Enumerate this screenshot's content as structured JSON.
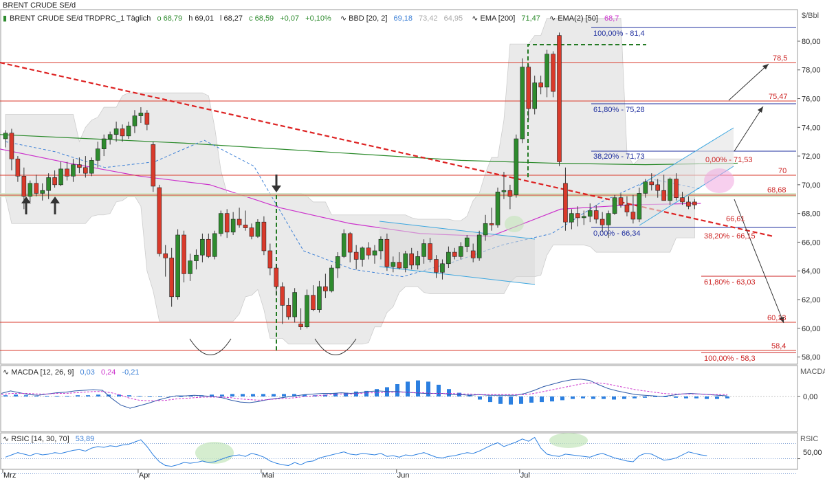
{
  "header": {
    "symbol": "BRENT CRUDE SE/d",
    "line": "BRENT CRUDE SE/d TRDPRC_1 Täglich",
    "open": "o 68,79",
    "high": "h 69,01",
    "low": "l 68,27",
    "close": "c 68,59",
    "change": "+0,07",
    "change_pct": "+0,10%",
    "bbd_label": "BBD [20, 2]",
    "bbd_v1": "69,18",
    "bbd_v2": "73,42",
    "bbd_v3": "64,95",
    "ema_label": "EMA [200]",
    "ema_value": "71,47",
    "ema2_label": "EMA(2) [50]",
    "ema2_value": "68,7"
  },
  "colors": {
    "up": "#2e8b2e",
    "down": "#d93a2b",
    "band_fill": "#e4e4e4",
    "ema200": "#2b8a2b",
    "ema50": "#cc33cc",
    "midband": "#3b7fd6",
    "trend": "#dd2222",
    "fib_red": "#cc2222",
    "fib_blue": "#1f2f9f",
    "macd_hist": "#2b7fe0",
    "rsi_line": "#2b7fe0"
  },
  "chart_data": {
    "type": "candlestick",
    "unit_label": "$/Bbl",
    "y_ticks": [
      "80,00",
      "78,00",
      "76,00",
      "74,00",
      "72,00",
      "70,00",
      "68,00",
      "66,00",
      "64,00",
      "62,00",
      "60,00",
      "58,00"
    ],
    "ylim": [
      57.5,
      82.2
    ],
    "x_labels": [
      {
        "label": "Mrz",
        "index": 0
      },
      {
        "label": "Apr",
        "index": 22
      },
      {
        "label": "Mai",
        "index": 42
      },
      {
        "label": "Jun",
        "index": 64
      },
      {
        "label": "Jul",
        "index": 84
      }
    ],
    "candles": [
      [
        73.2,
        73.8,
        72.6,
        73.6
      ],
      [
        73.6,
        73.9,
        71.0,
        71.8
      ],
      [
        71.8,
        72.0,
        70.2,
        70.6
      ],
      [
        70.6,
        71.2,
        68.3,
        69.2
      ],
      [
        69.2,
        70.3,
        68.8,
        70.1
      ],
      [
        70.1,
        70.7,
        69.2,
        69.4
      ],
      [
        69.4,
        70.1,
        68.9,
        69.6
      ],
      [
        69.6,
        70.8,
        69.0,
        70.5
      ],
      [
        70.5,
        71.0,
        69.8,
        70.0
      ],
      [
        70.0,
        71.6,
        69.9,
        71.1
      ],
      [
        71.1,
        71.6,
        70.3,
        70.6
      ],
      [
        70.6,
        71.8,
        70.2,
        71.4
      ],
      [
        71.4,
        71.9,
        70.8,
        71.2
      ],
      [
        71.2,
        72.0,
        70.5,
        70.8
      ],
      [
        70.8,
        71.9,
        70.6,
        71.7
      ],
      [
        71.7,
        73.0,
        71.2,
        72.5
      ],
      [
        72.5,
        73.5,
        72.0,
        73.2
      ],
      [
        73.2,
        73.7,
        72.8,
        73.5
      ],
      [
        73.5,
        74.4,
        73.0,
        73.9
      ],
      [
        73.9,
        74.2,
        73.0,
        73.4
      ],
      [
        73.4,
        74.4,
        73.2,
        74.1
      ],
      [
        74.1,
        75.2,
        73.6,
        74.8
      ],
      [
        74.8,
        75.4,
        74.3,
        75.0
      ],
      [
        75.0,
        75.2,
        73.8,
        74.2
      ],
      [
        72.8,
        73.0,
        69.5,
        69.9
      ],
      [
        69.8,
        70.0,
        65.0,
        65.2
      ],
      [
        65.2,
        65.8,
        63.6,
        64.9
      ],
      [
        64.9,
        65.6,
        61.5,
        62.2
      ],
      [
        62.2,
        66.9,
        62.0,
        66.5
      ],
      [
        66.5,
        66.8,
        63.2,
        63.8
      ],
      [
        63.8,
        65.2,
        63.3,
        64.7
      ],
      [
        64.7,
        65.5,
        64.1,
        65.1
      ],
      [
        65.1,
        66.6,
        64.6,
        66.2
      ],
      [
        66.2,
        66.6,
        64.9,
        65.0
      ],
      [
        65.0,
        66.8,
        64.8,
        66.6
      ],
      [
        66.6,
        68.2,
        66.4,
        68.0
      ],
      [
        68.0,
        68.3,
        66.3,
        66.7
      ],
      [
        66.7,
        68.1,
        66.5,
        67.6
      ],
      [
        67.6,
        68.4,
        67.0,
        67.2
      ],
      [
        67.2,
        68.2,
        66.8,
        67.0
      ],
      [
        67.0,
        67.3,
        66.2,
        66.4
      ],
      [
        66.4,
        67.6,
        66.3,
        67.4
      ],
      [
        67.4,
        67.8,
        65.1,
        65.4
      ],
      [
        65.4,
        65.9,
        63.7,
        64.2
      ],
      [
        64.2,
        64.5,
        62.3,
        62.9
      ],
      [
        62.9,
        63.2,
        60.3,
        61.6
      ],
      [
        61.6,
        62.1,
        60.6,
        60.8
      ],
      [
        60.8,
        62.8,
        60.4,
        62.5
      ],
      [
        60.3,
        61.4,
        59.9,
        60.1
      ],
      [
        60.1,
        62.7,
        60.0,
        62.3
      ],
      [
        62.3,
        63.0,
        61.2,
        61.3
      ],
      [
        61.3,
        63.3,
        61.1,
        62.9
      ],
      [
        62.9,
        63.8,
        62.1,
        62.6
      ],
      [
        62.6,
        64.4,
        62.5,
        64.2
      ],
      [
        64.2,
        65.3,
        63.5,
        65.0
      ],
      [
        65.0,
        66.9,
        64.9,
        66.6
      ],
      [
        66.6,
        66.7,
        64.6,
        65.3
      ],
      [
        65.3,
        65.8,
        64.1,
        64.8
      ],
      [
        64.8,
        65.7,
        64.3,
        65.6
      ],
      [
        65.6,
        66.0,
        64.8,
        65.1
      ],
      [
        65.1,
        65.8,
        64.5,
        65.4
      ],
      [
        65.4,
        66.4,
        64.8,
        66.2
      ],
      [
        66.2,
        66.6,
        64.0,
        64.3
      ],
      [
        64.3,
        65.0,
        63.9,
        64.6
      ],
      [
        64.6,
        65.3,
        64.1,
        64.2
      ],
      [
        64.2,
        65.4,
        63.9,
        65.2
      ],
      [
        65.2,
        65.6,
        64.1,
        64.4
      ],
      [
        64.4,
        65.4,
        64.1,
        65.0
      ],
      [
        65.0,
        66.2,
        64.5,
        65.9
      ],
      [
        65.9,
        66.3,
        64.6,
        64.8
      ],
      [
        64.8,
        65.1,
        63.5,
        63.9
      ],
      [
        63.9,
        64.8,
        63.4,
        64.5
      ],
      [
        64.5,
        65.7,
        64.2,
        65.3
      ],
      [
        65.3,
        65.6,
        64.8,
        65.0
      ],
      [
        65.0,
        66.0,
        64.8,
        65.7
      ],
      [
        65.7,
        66.5,
        65.3,
        66.3
      ],
      [
        65.4,
        65.9,
        64.6,
        64.9
      ],
      [
        64.9,
        66.8,
        64.7,
        66.5
      ],
      [
        66.5,
        67.9,
        66.1,
        67.3
      ],
      [
        67.3,
        68.4,
        66.8,
        67.2
      ],
      [
        67.2,
        69.8,
        67.0,
        69.5
      ],
      [
        69.5,
        70.9,
        69.0,
        69.6
      ],
      [
        69.6,
        70.0,
        68.3,
        69.2
      ],
      [
        69.3,
        73.5,
        69.1,
        73.2
      ],
      [
        73.2,
        78.8,
        72.9,
        78.2
      ],
      [
        78.2,
        78.4,
        74.5,
        75.3
      ],
      [
        75.3,
        77.6,
        74.9,
        77.1
      ],
      [
        77.1,
        77.6,
        76.3,
        76.8
      ],
      [
        76.8,
        79.4,
        76.1,
        79.1
      ],
      [
        79.1,
        79.3,
        76.1,
        76.5
      ],
      [
        80.4,
        80.6,
        71.3,
        71.6
      ],
      [
        70.1,
        71.2,
        66.8,
        67.4
      ],
      [
        67.4,
        68.3,
        66.9,
        68.0
      ],
      [
        68.0,
        68.5,
        67.1,
        67.7
      ],
      [
        67.7,
        68.2,
        67.2,
        67.8
      ],
      [
        67.8,
        68.7,
        67.4,
        68.2
      ],
      [
        68.2,
        68.6,
        67.3,
        67.6
      ],
      [
        67.6,
        68.1,
        66.7,
        67.2
      ],
      [
        67.2,
        68.2,
        66.3,
        68.0
      ],
      [
        68.0,
        69.3,
        67.9,
        69.1
      ],
      [
        69.1,
        69.4,
        68.4,
        68.6
      ],
      [
        68.6,
        69.2,
        67.8,
        68.1
      ],
      [
        68.1,
        69.3,
        67.3,
        67.6
      ],
      [
        67.6,
        69.8,
        67.4,
        69.4
      ],
      [
        69.4,
        70.4,
        69.1,
        70.2
      ],
      [
        70.2,
        70.8,
        69.6,
        70.0
      ],
      [
        70.0,
        70.4,
        69.1,
        69.6
      ],
      [
        69.6,
        70.7,
        68.9,
        68.9
      ],
      [
        68.9,
        70.5,
        68.6,
        70.4
      ],
      [
        70.4,
        70.8,
        68.9,
        69.1
      ],
      [
        69.1,
        69.5,
        68.6,
        68.8
      ],
      [
        68.8,
        69.2,
        68.3,
        68.5
      ],
      [
        68.8,
        69.0,
        68.3,
        68.6
      ]
    ],
    "ema200": [
      73.5,
      73.2,
      72.9,
      72.5,
      72.1,
      71.7,
      71.5,
      71.4,
      71.5
    ],
    "ema50": [
      72.5,
      71.5,
      70.6,
      70.0,
      68.4,
      67.3,
      66.6,
      66.4,
      68.3,
      68.6,
      68.7
    ],
    "mid_band": [
      73.0,
      72.3,
      71.2,
      71.6,
      73.1,
      71.3,
      65.4,
      64.1,
      63.6,
      64.6,
      65.8,
      66.6,
      68.8,
      70.4,
      69.7
    ],
    "annotations": {
      "right_levels": [
        "78,5",
        "75,47",
        "70",
        "68,68",
        "66,61",
        "60,13",
        "58,4"
      ],
      "fib_upper": [
        "100,00% - 81,4",
        "61,80% - 75,28",
        "38,20% - 71,73",
        "0,00% - 71,53",
        "0,00% - 66,34"
      ],
      "fib_lower": [
        "38,20% - 66,15",
        "61,80% - 63,03",
        "100,00% - 58,3"
      ]
    },
    "macd": {
      "label": "MACDA [12, 26, 9]",
      "v1": "0,03",
      "v2": "0,24",
      "v3": "-0,21",
      "axis_title": "MACDA",
      "zero_label": "0,00",
      "line": [
        0.5,
        0.9,
        0.6,
        0.3,
        0.2,
        0.4,
        0.6,
        0.7,
        0.9,
        1.0,
        1.1,
        1.0,
        -0.3,
        -1.4,
        -1.9,
        -1.5,
        -1.1,
        -0.6,
        -0.2,
        0.1,
        0.1,
        0.2,
        0.1,
        0.0,
        -0.2,
        -0.6,
        -0.9,
        -1.0,
        -0.8,
        -0.5,
        -0.3,
        -0.1,
        0.1,
        0.3,
        0.4,
        0.5,
        0.5,
        0.6,
        0.5,
        0.6,
        0.8,
        0.9,
        0.8,
        0.8,
        0.7,
        0.6,
        0.5,
        0.5,
        0.5,
        0.3,
        0.3,
        0.2,
        0.3,
        0.2,
        0.2,
        0.2,
        0.2,
        0.5,
        1.0,
        1.6,
        2.0,
        2.4,
        2.7,
        2.8,
        2.6,
        1.9,
        1.3,
        0.9,
        0.6,
        0.3,
        0.2,
        0.1,
        0.0,
        0.2,
        0.4,
        0.5,
        0.4,
        0.3,
        0.2,
        0.1
      ],
      "signal": [
        0.3,
        0.5,
        0.5,
        0.5,
        0.4,
        0.4,
        0.5,
        0.5,
        0.6,
        0.7,
        0.8,
        0.8,
        0.6,
        0.2,
        -0.3,
        -0.6,
        -0.7,
        -0.7,
        -0.6,
        -0.4,
        -0.3,
        -0.2,
        -0.1,
        -0.1,
        -0.1,
        -0.2,
        -0.4,
        -0.5,
        -0.6,
        -0.5,
        -0.4,
        -0.3,
        -0.2,
        0.0,
        0.1,
        0.2,
        0.3,
        0.4,
        0.4,
        0.5,
        0.6,
        0.6,
        0.7,
        0.7,
        0.7,
        0.6,
        0.6,
        0.5,
        0.5,
        0.5,
        0.4,
        0.4,
        0.3,
        0.3,
        0.3,
        0.3,
        0.3,
        0.3,
        0.5,
        0.8,
        1.1,
        1.4,
        1.7,
        2.0,
        2.2,
        2.2,
        2.0,
        1.7,
        1.4,
        1.1,
        0.9,
        0.7,
        0.5,
        0.4,
        0.4,
        0.4,
        0.4,
        0.3,
        0.3,
        0.3
      ],
      "hist": [
        0.2,
        0.3,
        0.2,
        0.1,
        0.1,
        0.1,
        0.1,
        0.2,
        0.2,
        0.3,
        0.3,
        0.3,
        0.2,
        0.1,
        0.0,
        -0.1,
        -0.1,
        0.0,
        0.1,
        0.2,
        0.3,
        0.3,
        0.4,
        0.4,
        0.4,
        0.4,
        0.4,
        0.4,
        0.4,
        0.3,
        0.2,
        0.3,
        0.5,
        0.6,
        0.8,
        0.9,
        1.2,
        1.5,
        2.0,
        2.4,
        2.6,
        2.4,
        1.9,
        1.2,
        0.6,
        0.3,
        -0.5,
        -0.9,
        -1.2,
        -1.3,
        -1.2,
        -1.0,
        -0.9,
        -0.8,
        -0.6,
        -0.4,
        -0.3,
        -0.4,
        -0.4,
        -0.5,
        -0.4,
        -0.3,
        -0.2,
        -0.1,
        -0.1,
        -0.2,
        -0.3,
        -0.3,
        -0.4,
        -0.4,
        -0.3
      ]
    },
    "rsi": {
      "label": "RSIC [14, 30, 70]",
      "value": "53,89",
      "axis_title": "RSIC",
      "mid_label": "50,00",
      "series": [
        52,
        55,
        58,
        56,
        54,
        57,
        55,
        56,
        58,
        57,
        59,
        61,
        62,
        60,
        64,
        66,
        65,
        67,
        66,
        68,
        69,
        72,
        75,
        66,
        55,
        46,
        41,
        40,
        42,
        45,
        44,
        45,
        47,
        45,
        46,
        49,
        52,
        54,
        55,
        53,
        57,
        55,
        52,
        47,
        44,
        42,
        41,
        45,
        42,
        46,
        47,
        51,
        53,
        55,
        57,
        59,
        56,
        55,
        57,
        56,
        55,
        57,
        53,
        54,
        52,
        55,
        54,
        56,
        58,
        55,
        52,
        51,
        53,
        54,
        56,
        58,
        57,
        60,
        64,
        68,
        71,
        66,
        69,
        72,
        76,
        73,
        78,
        64,
        56,
        54,
        53,
        56,
        55,
        54,
        53,
        52,
        55,
        57,
        54,
        51,
        49,
        47,
        46,
        54,
        57,
        56,
        52,
        48,
        49,
        51,
        55,
        59,
        57,
        55,
        54
      ]
    }
  }
}
